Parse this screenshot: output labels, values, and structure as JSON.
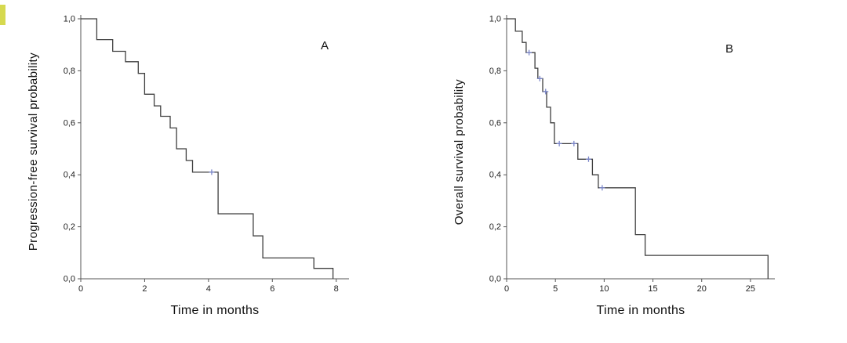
{
  "figure": {
    "background": "#ffffff",
    "description": "Two Kaplan-Meier survival curves, panels A and B"
  },
  "chart_data": [
    {
      "type": "line",
      "subtype": "kaplan-meier-step",
      "panel_label": "A",
      "ylabel": "Progression-free  survival probability",
      "xlabel": "Time in months",
      "xlim": [
        0,
        8.4
      ],
      "ylim": [
        0,
        1.0
      ],
      "xticks": [
        0,
        2,
        4,
        6,
        8
      ],
      "ytick_values": [
        0,
        0.2,
        0.4,
        0.6,
        0.8,
        1.0
      ],
      "yticks": [
        "0,0",
        "0,2",
        "0,4",
        "0,6",
        "0,8",
        "1,0"
      ],
      "grid": false,
      "legend": "none",
      "line_color": "#3f3f3f",
      "axis_color": "#555555",
      "censor_color": "#7b86c9",
      "steps": [
        [
          0,
          1.0
        ],
        [
          0.5,
          0.92
        ],
        [
          1.0,
          0.875
        ],
        [
          1.4,
          0.835
        ],
        [
          1.8,
          0.79
        ],
        [
          2.0,
          0.71
        ],
        [
          2.3,
          0.665
        ],
        [
          2.5,
          0.625
        ],
        [
          2.8,
          0.58
        ],
        [
          3.0,
          0.5
        ],
        [
          3.3,
          0.455
        ],
        [
          3.5,
          0.41
        ],
        [
          4.3,
          0.25
        ],
        [
          5.4,
          0.165
        ],
        [
          5.7,
          0.08
        ],
        [
          7.3,
          0.04
        ],
        [
          7.9,
          0.0
        ]
      ],
      "censor_marks": [
        [
          4.1,
          0.41
        ]
      ]
    },
    {
      "type": "line",
      "subtype": "kaplan-meier-step",
      "panel_label": "B",
      "ylabel": "Overall survival probability",
      "xlabel": "Time in months",
      "xlim": [
        0,
        27.5
      ],
      "ylim": [
        0,
        1.0
      ],
      "xticks": [
        0,
        5,
        10,
        15,
        20,
        25
      ],
      "ytick_values": [
        0,
        0.2,
        0.4,
        0.6,
        0.8,
        1.0
      ],
      "yticks": [
        "0,0",
        "0,2",
        "0,4",
        "0,6",
        "0,8",
        "1,0"
      ],
      "grid": false,
      "legend": "none",
      "line_color": "#3f3f3f",
      "axis_color": "#555555",
      "censor_color": "#7b86c9",
      "steps": [
        [
          0,
          1.0
        ],
        [
          0.9,
          0.952
        ],
        [
          1.6,
          0.909
        ],
        [
          2.0,
          0.87
        ],
        [
          2.9,
          0.81
        ],
        [
          3.2,
          0.77
        ],
        [
          3.7,
          0.72
        ],
        [
          4.1,
          0.66
        ],
        [
          4.5,
          0.6
        ],
        [
          4.9,
          0.52
        ],
        [
          7.3,
          0.46
        ],
        [
          8.8,
          0.4
        ],
        [
          9.4,
          0.35
        ],
        [
          13.2,
          0.17
        ],
        [
          14.2,
          0.09
        ],
        [
          26.8,
          0.0
        ]
      ],
      "censor_marks": [
        [
          2.3,
          0.87
        ],
        [
          3.4,
          0.77
        ],
        [
          4.0,
          0.72
        ],
        [
          5.4,
          0.52
        ],
        [
          6.9,
          0.52
        ],
        [
          8.4,
          0.46
        ],
        [
          9.8,
          0.35
        ]
      ]
    }
  ]
}
